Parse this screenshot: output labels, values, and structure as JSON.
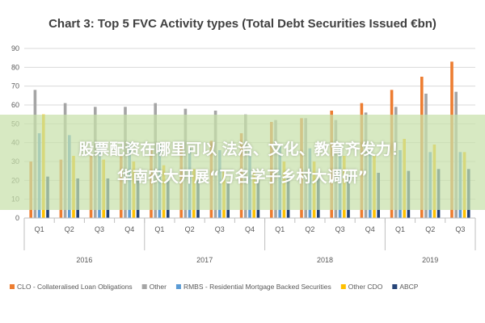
{
  "chart_data": {
    "type": "bar",
    "title": "Chart 3: Top 5 FVC Activity types (Total Debt Securities Issued €bn)",
    "ylim": [
      0,
      90
    ],
    "yticks": [
      0,
      10,
      20,
      30,
      40,
      50,
      60,
      70,
      80,
      90
    ],
    "categories": [
      "Q1",
      "Q2",
      "Q3",
      "Q4",
      "Q1",
      "Q2",
      "Q3",
      "Q4",
      "Q1",
      "Q2",
      "Q3",
      "Q4",
      "Q1",
      "Q2",
      "Q3"
    ],
    "groups": [
      {
        "label": "2016",
        "count": 4
      },
      {
        "label": "2017",
        "count": 4
      },
      {
        "label": "2018",
        "count": 4
      },
      {
        "label": "2019",
        "count": 3
      }
    ],
    "grid": true,
    "legend_position": "bottom",
    "series": [
      {
        "name": "CLO - Collateralised Loan Obligations",
        "color": "#ED7D31",
        "values": [
          30,
          31,
          33,
          33,
          36,
          38,
          41,
          45,
          51,
          53,
          57,
          61,
          68,
          75,
          83
        ]
      },
      {
        "name": "Other",
        "color": "#A5A5A5",
        "values": [
          68,
          61,
          59,
          59,
          61,
          58,
          57,
          55,
          52,
          53,
          52,
          56,
          59,
          66,
          67
        ]
      },
      {
        "name": "RMBS - Residential Mortgage Backed Securities",
        "color": "#5B9BD5",
        "values": [
          45,
          44,
          40,
          40,
          39,
          37,
          36,
          36,
          38,
          37,
          37,
          36,
          36,
          35,
          35
        ]
      },
      {
        "name": "Other CDO",
        "color": "#FFC000",
        "values": [
          55,
          33,
          31,
          30,
          28,
          26,
          25,
          25,
          30,
          30,
          33,
          33,
          42,
          39,
          35
        ]
      },
      {
        "name": "ABCP",
        "color": "#264478",
        "values": [
          22,
          21,
          21,
          21,
          20,
          20,
          19,
          20,
          21,
          21,
          23,
          24,
          25,
          26,
          26
        ]
      }
    ]
  },
  "overlay": {
    "line1": "股票配资在哪里可以 法治、文化、教育齐发力！",
    "line2": "华南农大开展“万名学子乡村大调研”"
  }
}
